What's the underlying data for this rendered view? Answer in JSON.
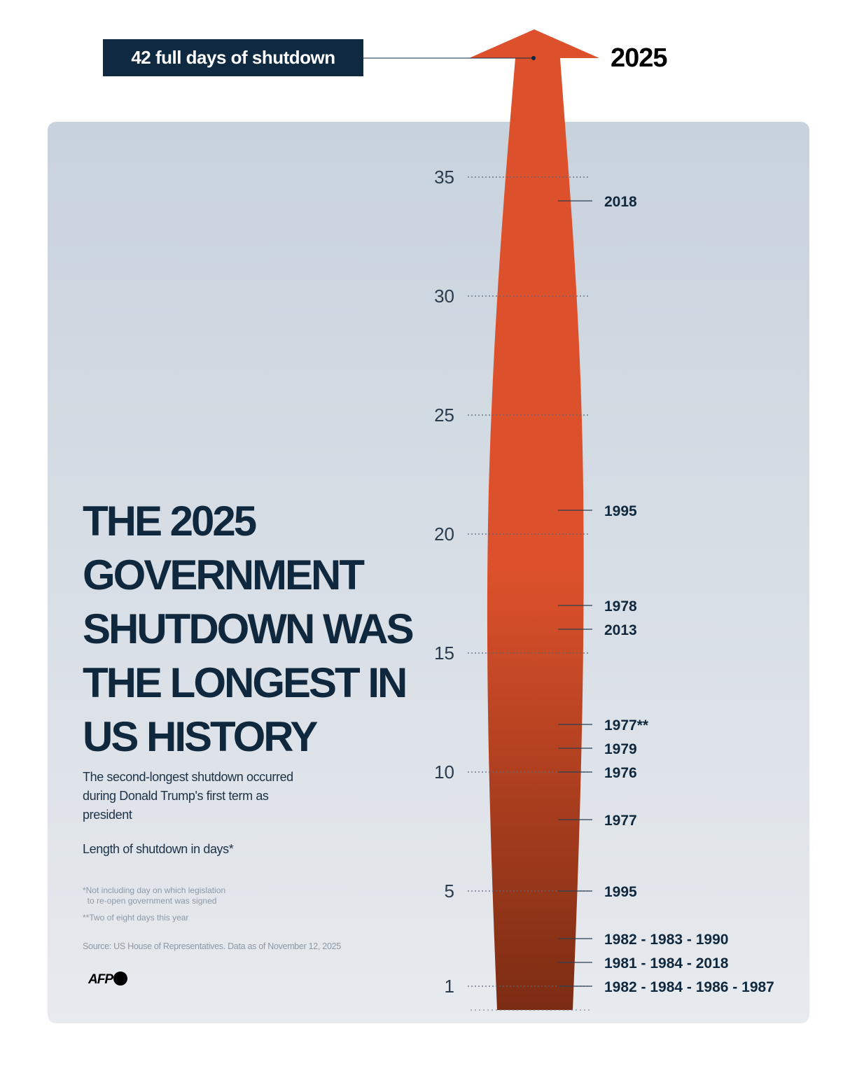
{
  "header": {
    "callout": "42 full days of shutdown",
    "top_year": "2025"
  },
  "title": "THE 2025 GOVERNMENT SHUTDOWN WAS THE LONGEST IN US HISTORY",
  "subtitle": "The second-longest shutdown occurred during Donald Trump's first term as president",
  "unit_label": "Length of shutdown in days*",
  "notes": [
    "*Not including day on which legislation\n  to re-open government was signed",
    "**Two of eight days this year"
  ],
  "source": "Source: US House of Representatives. Data as of November 12, 2025",
  "logo": "AFP",
  "colors": {
    "arrow_top": "#dc512b",
    "arrow_bottom": "#7b2c13",
    "panel_top": "#c8d2dd",
    "panel_bottom": "#e7eaee",
    "text": "#10283d"
  },
  "chart_data": {
    "type": "arrow-scale",
    "ylabel": "Length of shutdown in days*",
    "ylim": [
      0,
      42
    ],
    "y_ticks": [
      1,
      5,
      10,
      15,
      20,
      25,
      30,
      35
    ],
    "y_tick_labels": [
      "1",
      "5",
      "10",
      "15",
      "20",
      "25",
      "30",
      "35"
    ],
    "highlight": {
      "label": "2025",
      "value": 42
    },
    "points": [
      {
        "label": "2018",
        "value": 34
      },
      {
        "label": "1995",
        "value": 21
      },
      {
        "label": "1978",
        "value": 17
      },
      {
        "label": "2013",
        "value": 16
      },
      {
        "label": "1977**",
        "value": 12
      },
      {
        "label": "1979",
        "value": 11
      },
      {
        "label": "1976",
        "value": 10
      },
      {
        "label": "1977",
        "value": 8
      },
      {
        "label": "1995",
        "value": 5
      },
      {
        "label": "1982 - 1983 - 1990",
        "value": 3
      },
      {
        "label": "1981 - 1984 - 2018",
        "value": 2
      },
      {
        "label": "1982 - 1984 - 1986 - 1987",
        "value": 1
      }
    ]
  }
}
